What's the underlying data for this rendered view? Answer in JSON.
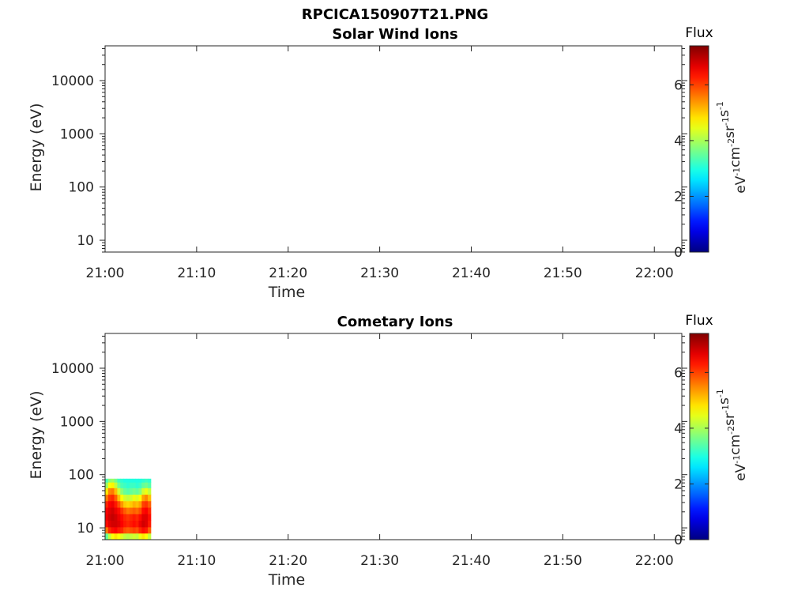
{
  "figure": {
    "title": "RPCICA150907T21.PNG"
  },
  "chart_data": [
    {
      "type": "heatmap",
      "title": "Solar Wind Ions",
      "xlabel": "Time",
      "ylabel": "Energy (eV)",
      "x_ticks": [
        "21:00",
        "21:10",
        "21:20",
        "21:30",
        "21:40",
        "21:50",
        "22:00"
      ],
      "xlim": [
        "21:00",
        "22:03"
      ],
      "y_scale": "log",
      "y_ticks": [
        10,
        100,
        1000,
        10000
      ],
      "y_tick_labels": [
        "10",
        "100",
        "1000",
        "10000"
      ],
      "ylim": [
        6,
        45000
      ],
      "colorbar": {
        "title": "Flux",
        "label": "eV-1cm-2sr-1s-1",
        "label_parts": [
          {
            "text": "eV",
            "sup": "-1"
          },
          {
            "text": "cm",
            "sup": "-2"
          },
          {
            "text": "sr",
            "sup": "-1"
          },
          {
            "text": "s",
            "sup": "-1"
          }
        ],
        "ticks": [
          0,
          2,
          4,
          6
        ],
        "range": [
          0,
          7.4
        ],
        "colormap": "jet"
      },
      "cells": []
    },
    {
      "type": "heatmap",
      "title": "Cometary Ions",
      "xlabel": "Time",
      "ylabel": "Energy (eV)",
      "x_ticks": [
        "21:00",
        "21:10",
        "21:20",
        "21:30",
        "21:40",
        "21:50",
        "22:00"
      ],
      "xlim": [
        "21:00",
        "22:03"
      ],
      "y_scale": "log",
      "y_ticks": [
        10,
        100,
        1000,
        10000
      ],
      "y_tick_labels": [
        "10",
        "100",
        "1000",
        "10000"
      ],
      "ylim": [
        6,
        45000
      ],
      "colorbar": {
        "title": "Flux",
        "label": "eV-1cm-2sr-1s-1",
        "label_parts": [
          {
            "text": "eV",
            "sup": "-1"
          },
          {
            "text": "cm",
            "sup": "-2"
          },
          {
            "text": "sr",
            "sup": "-1"
          },
          {
            "text": "s",
            "sup": "-1"
          }
        ],
        "ticks": [
          0,
          2,
          4,
          6
        ],
        "range": [
          0,
          7.4
        ],
        "colormap": "jet"
      },
      "time_columns": [
        "21:00:00",
        "21:00:20",
        "21:00:40",
        "21:01:00",
        "21:01:20",
        "21:01:40",
        "21:02:00",
        "21:02:20",
        "21:02:40",
        "21:03:00",
        "21:03:20",
        "21:03:40",
        "21:04:00",
        "21:04:20",
        "21:04:40"
      ],
      "energy_bins": [
        7,
        9,
        12,
        16,
        21,
        28,
        37,
        49,
        65,
        80
      ],
      "flux": [
        [
          3.5,
          4.2,
          4.6,
          4.8,
          4.6,
          4.4,
          4.2,
          4.1,
          4.2,
          4.3,
          4.2,
          4.5,
          4.8,
          4.6,
          4.2
        ],
        [
          5.6,
          6.2,
          6.4,
          6.5,
          6.3,
          6.2,
          5.9,
          5.8,
          5.9,
          6.0,
          5.9,
          6.2,
          6.4,
          6.3,
          5.8
        ],
        [
          6.4,
          6.7,
          6.8,
          6.8,
          6.7,
          6.5,
          6.3,
          6.2,
          6.3,
          6.4,
          6.3,
          6.6,
          6.8,
          6.7,
          6.3
        ],
        [
          6.6,
          6.8,
          6.9,
          6.8,
          6.6,
          6.4,
          6.2,
          6.1,
          6.2,
          6.3,
          6.2,
          6.4,
          6.7,
          6.7,
          6.4
        ],
        [
          6.5,
          6.7,
          6.8,
          6.6,
          6.4,
          6.1,
          5.8,
          5.6,
          5.7,
          5.8,
          5.7,
          5.9,
          6.4,
          6.5,
          6.2
        ],
        [
          6.2,
          6.5,
          6.6,
          6.3,
          5.9,
          5.4,
          5.0,
          4.9,
          5.0,
          5.2,
          5.1,
          5.3,
          6.0,
          6.1,
          5.8
        ],
        [
          5.6,
          6.1,
          6.2,
          5.8,
          5.1,
          4.6,
          4.3,
          4.2,
          4.3,
          4.5,
          4.4,
          4.6,
          5.3,
          5.5,
          5.1
        ],
        [
          4.8,
          5.5,
          5.6,
          5.1,
          4.3,
          3.8,
          3.5,
          3.4,
          3.5,
          3.6,
          3.5,
          3.7,
          4.3,
          4.5,
          4.2
        ],
        [
          3.9,
          4.6,
          4.7,
          4.2,
          3.6,
          3.3,
          3.2,
          3.1,
          3.2,
          3.2,
          3.1,
          3.2,
          3.5,
          3.6,
          3.4
        ],
        [
          3.3,
          3.8,
          3.9,
          3.6,
          3.2,
          3.1,
          3.0,
          3.0,
          3.0,
          3.0,
          3.0,
          3.0,
          3.1,
          3.2,
          3.1
        ]
      ]
    }
  ]
}
